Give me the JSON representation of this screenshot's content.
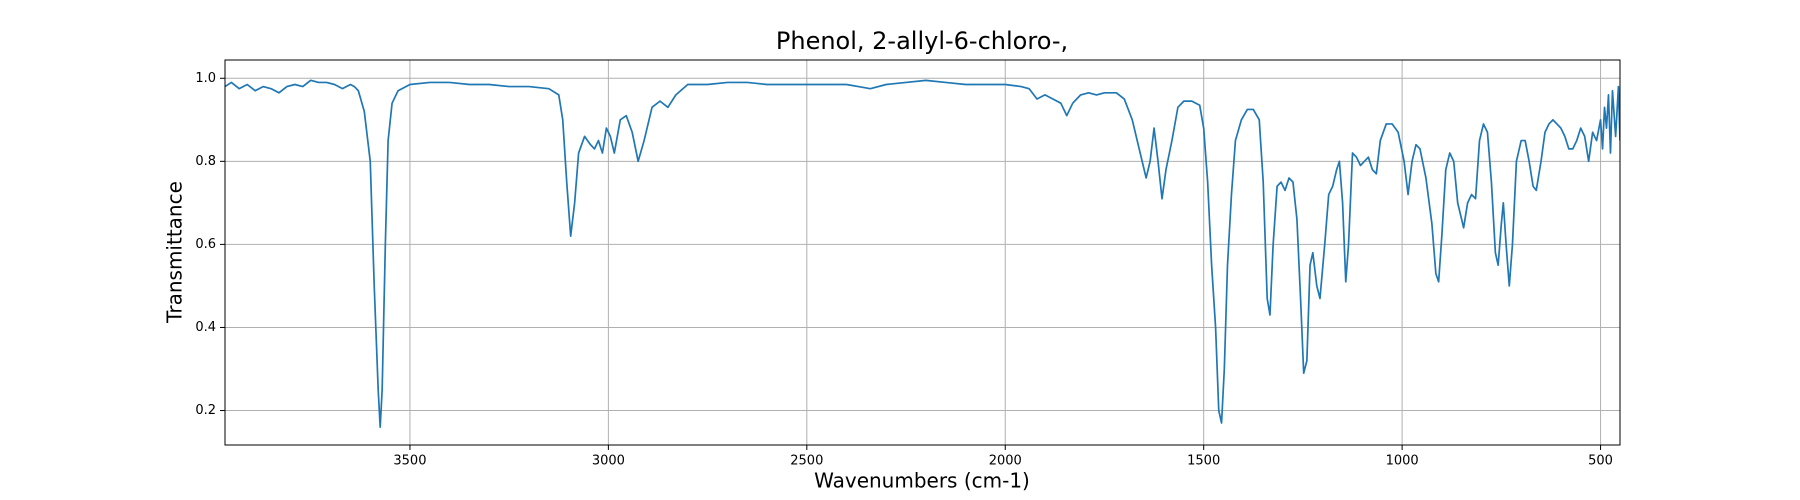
{
  "chart_data": {
    "type": "line",
    "title": "Phenol, 2-allyl-6-chloro-,",
    "xlabel": "Wavenumbers (cm-1)",
    "ylabel": "Transmittance",
    "color": "#1f77b4",
    "grid": true,
    "xlim": [
      3966,
      451
    ],
    "ylim": [
      0.117,
      1.044
    ],
    "xticks": [
      3500,
      3000,
      2500,
      2000,
      1500,
      1000,
      500
    ],
    "yticks": [
      0.2,
      0.4,
      0.6,
      0.8,
      {
        "value": 1.0,
        "label": "1.0"
      }
    ],
    "x": [
      3966,
      3950,
      3930,
      3910,
      3890,
      3870,
      3850,
      3830,
      3810,
      3790,
      3770,
      3750,
      3730,
      3710,
      3690,
      3670,
      3650,
      3640,
      3630,
      3615,
      3600,
      3590,
      3580,
      3575,
      3570,
      3562,
      3555,
      3545,
      3530,
      3500,
      3450,
      3400,
      3350,
      3300,
      3250,
      3200,
      3150,
      3125,
      3115,
      3105,
      3095,
      3085,
      3075,
      3060,
      3045,
      3035,
      3025,
      3015,
      3005,
      2995,
      2985,
      2970,
      2955,
      2940,
      2925,
      2910,
      2890,
      2870,
      2850,
      2830,
      2800,
      2750,
      2700,
      2650,
      2600,
      2550,
      2500,
      2450,
      2400,
      2370,
      2340,
      2300,
      2250,
      2200,
      2150,
      2100,
      2050,
      2000,
      1960,
      1940,
      1920,
      1900,
      1880,
      1860,
      1845,
      1830,
      1810,
      1790,
      1770,
      1750,
      1720,
      1700,
      1680,
      1660,
      1645,
      1635,
      1625,
      1615,
      1605,
      1595,
      1580,
      1565,
      1550,
      1530,
      1510,
      1500,
      1490,
      1480,
      1470,
      1462,
      1455,
      1448,
      1440,
      1430,
      1420,
      1405,
      1390,
      1375,
      1360,
      1350,
      1340,
      1333,
      1325,
      1315,
      1305,
      1295,
      1285,
      1275,
      1265,
      1255,
      1248,
      1240,
      1232,
      1225,
      1215,
      1207,
      1195,
      1185,
      1175,
      1165,
      1158,
      1150,
      1142,
      1135,
      1125,
      1115,
      1105,
      1095,
      1085,
      1075,
      1065,
      1055,
      1040,
      1025,
      1010,
      995,
      985,
      975,
      965,
      955,
      940,
      925,
      915,
      908,
      900,
      890,
      880,
      870,
      860,
      850,
      845,
      835,
      825,
      815,
      805,
      795,
      785,
      775,
      765,
      758,
      750,
      745,
      738,
      730,
      722,
      712,
      700,
      690,
      680,
      670,
      662,
      650,
      640,
      630,
      620,
      610,
      600,
      590,
      580,
      570,
      560,
      550,
      540,
      530,
      520,
      510,
      500,
      495,
      490,
      485,
      480,
      475,
      470,
      462,
      455,
      451
    ],
    "series": [
      {
        "name": "Transmittance",
        "color": "#1f77b4",
        "values": [
          0.98,
          0.99,
          0.975,
          0.985,
          0.97,
          0.98,
          0.975,
          0.965,
          0.98,
          0.985,
          0.98,
          0.995,
          0.99,
          0.99,
          0.985,
          0.975,
          0.985,
          0.98,
          0.97,
          0.92,
          0.8,
          0.5,
          0.25,
          0.16,
          0.25,
          0.6,
          0.85,
          0.94,
          0.97,
          0.985,
          0.99,
          0.99,
          0.985,
          0.985,
          0.98,
          0.98,
          0.975,
          0.96,
          0.9,
          0.75,
          0.62,
          0.7,
          0.82,
          0.86,
          0.84,
          0.83,
          0.85,
          0.82,
          0.88,
          0.86,
          0.82,
          0.9,
          0.91,
          0.87,
          0.8,
          0.85,
          0.93,
          0.945,
          0.93,
          0.96,
          0.985,
          0.985,
          0.99,
          0.99,
          0.985,
          0.985,
          0.985,
          0.985,
          0.985,
          0.98,
          0.975,
          0.985,
          0.99,
          0.995,
          0.99,
          0.985,
          0.985,
          0.985,
          0.98,
          0.975,
          0.95,
          0.96,
          0.95,
          0.94,
          0.91,
          0.94,
          0.96,
          0.965,
          0.96,
          0.965,
          0.965,
          0.95,
          0.9,
          0.82,
          0.76,
          0.8,
          0.88,
          0.8,
          0.71,
          0.78,
          0.85,
          0.93,
          0.945,
          0.945,
          0.935,
          0.88,
          0.75,
          0.55,
          0.4,
          0.2,
          0.17,
          0.3,
          0.55,
          0.72,
          0.85,
          0.9,
          0.925,
          0.925,
          0.9,
          0.75,
          0.47,
          0.43,
          0.6,
          0.74,
          0.75,
          0.73,
          0.76,
          0.75,
          0.66,
          0.45,
          0.29,
          0.32,
          0.55,
          0.58,
          0.5,
          0.47,
          0.6,
          0.72,
          0.74,
          0.78,
          0.8,
          0.7,
          0.51,
          0.6,
          0.82,
          0.81,
          0.79,
          0.8,
          0.81,
          0.78,
          0.77,
          0.85,
          0.89,
          0.89,
          0.87,
          0.8,
          0.72,
          0.8,
          0.84,
          0.83,
          0.76,
          0.65,
          0.53,
          0.51,
          0.62,
          0.78,
          0.82,
          0.8,
          0.7,
          0.66,
          0.64,
          0.7,
          0.72,
          0.71,
          0.85,
          0.89,
          0.87,
          0.75,
          0.58,
          0.55,
          0.65,
          0.7,
          0.6,
          0.5,
          0.6,
          0.8,
          0.85,
          0.85,
          0.8,
          0.74,
          0.73,
          0.8,
          0.87,
          0.89,
          0.9,
          0.89,
          0.88,
          0.86,
          0.83,
          0.83,
          0.85,
          0.88,
          0.86,
          0.8,
          0.87,
          0.85,
          0.9,
          0.83,
          0.93,
          0.88,
          0.96,
          0.82,
          0.97,
          0.86,
          0.98,
          0.85
        ]
      }
    ]
  }
}
